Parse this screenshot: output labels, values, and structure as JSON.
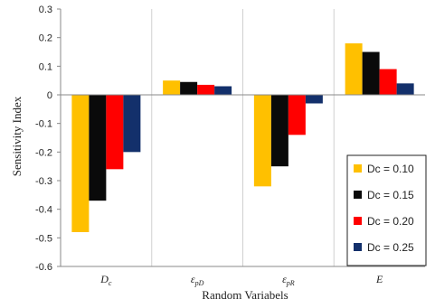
{
  "chart_data": {
    "type": "bar",
    "categories": [
      {
        "base": "D",
        "sub": "c"
      },
      {
        "base": "ε",
        "sub": "pD"
      },
      {
        "base": "ε",
        "sub": "pR"
      },
      {
        "base": "E",
        "sub": ""
      }
    ],
    "series": [
      {
        "name": "Dc = 0.10",
        "color": "#FFC000",
        "values": [
          -0.48,
          0.05,
          -0.32,
          0.18
        ]
      },
      {
        "name": "Dc = 0.15",
        "color": "#0a0a0a",
        "values": [
          -0.37,
          0.045,
          -0.25,
          0.15
        ]
      },
      {
        "name": "Dc = 0.20",
        "color": "#FF0000",
        "values": [
          -0.26,
          0.035,
          -0.14,
          0.09
        ]
      },
      {
        "name": "Dc = 0.25",
        "color": "#13306B",
        "values": [
          -0.2,
          0.03,
          -0.03,
          0.04
        ]
      }
    ],
    "ylabel": "Sensitivity Index",
    "xlabel": "Random Variabels",
    "ylim": [
      -0.6,
      0.3
    ],
    "yticks": [
      "0.3",
      "0.2",
      "0.1",
      "0",
      "-0.1",
      "-0.2",
      "-0.3",
      "-0.4",
      "-0.5",
      "-0.6"
    ],
    "ytick_values": [
      0.3,
      0.2,
      0.1,
      0,
      -0.1,
      -0.2,
      -0.3,
      -0.4,
      -0.5,
      -0.6
    ],
    "grid": "vertical category separators",
    "legend_position": "bottom-right"
  }
}
